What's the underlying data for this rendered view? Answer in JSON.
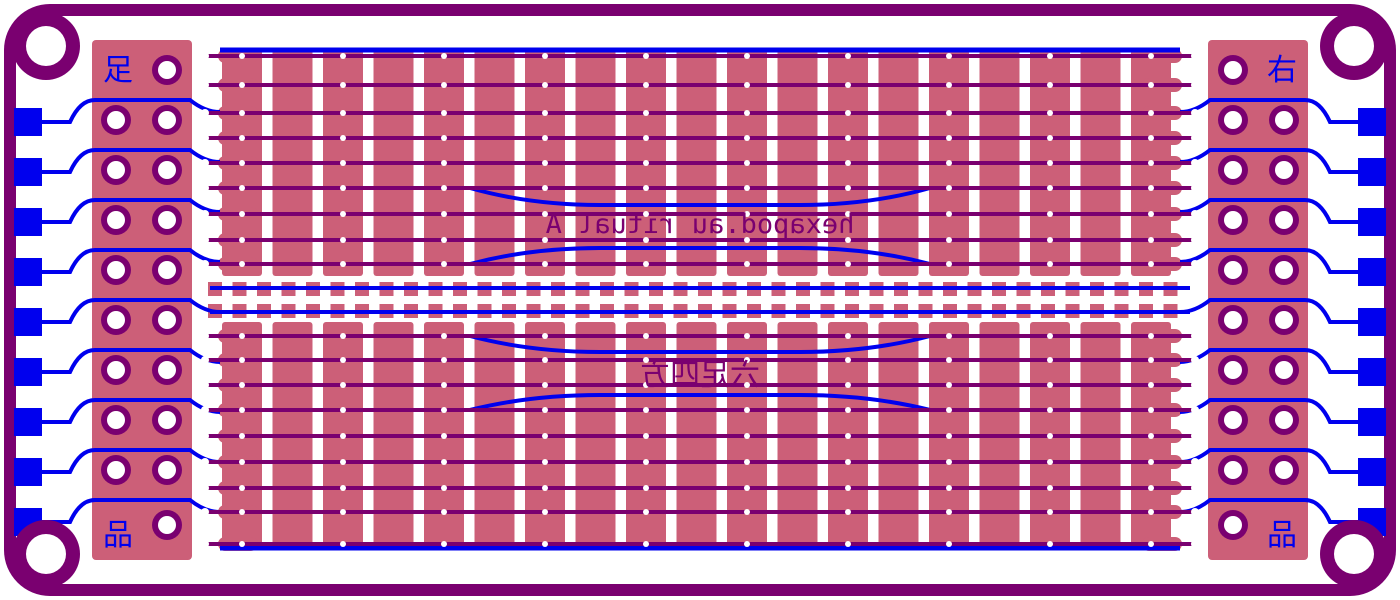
{
  "board": {
    "silkscreen_text_mirrored": "hexapod.au ritual A",
    "center_glyph_mirrored": "六足四方",
    "corner_glyphs": {
      "top_left": "足",
      "top_right": "右",
      "bottom_left": "品",
      "bottom_right": "品"
    },
    "colors": {
      "board_outline": "#7a0070",
      "copper_top": "#cc5f78",
      "copper_bottom": "#0000ee",
      "silk": "#7a0070",
      "hole": "#ffffff"
    },
    "stats": {
      "header_rows": 9,
      "track_rows": 18,
      "strip_columns": 19
    }
  }
}
